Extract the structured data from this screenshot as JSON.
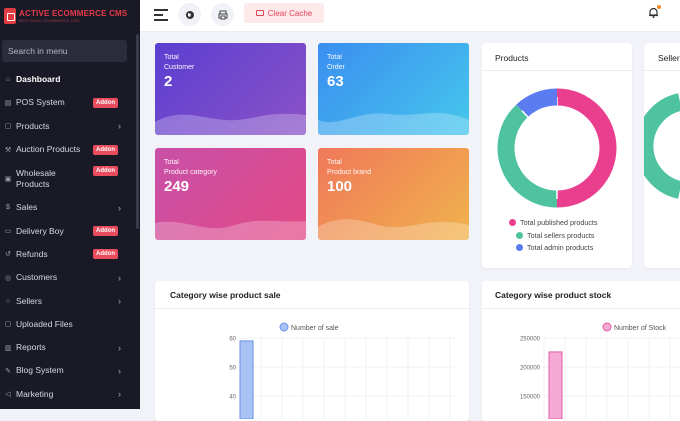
{
  "brand": {
    "title": "ACTIVE ECOMMERCE CMS",
    "subtitle": "BEST MULTI ECOMMERCE CMS"
  },
  "search": {
    "placeholder": "Search in menu"
  },
  "sidebar": {
    "items": [
      {
        "label": "Dashboard",
        "icon": "home-icon",
        "active": true
      },
      {
        "label": "POS System",
        "icon": "pos-icon",
        "addon": "Addon"
      },
      {
        "label": "Products",
        "icon": "bag-icon",
        "chevron": true
      },
      {
        "label": "Auction Products",
        "icon": "gavel-icon",
        "addon": "Addon"
      },
      {
        "label": "Wholesale Products",
        "icon": "wholesale-icon",
        "addon": "Addon"
      },
      {
        "label": "Sales",
        "icon": "sales-icon",
        "chevron": true
      },
      {
        "label": "Delivery Boy",
        "icon": "truck-icon",
        "addon": "Addon"
      },
      {
        "label": "Refunds",
        "icon": "refund-icon",
        "addon": "Addon"
      },
      {
        "label": "Customers",
        "icon": "users-icon",
        "chevron": true
      },
      {
        "label": "Sellers",
        "icon": "user-icon",
        "chevron": true
      },
      {
        "label": "Uploaded Files",
        "icon": "folder-icon"
      },
      {
        "label": "Reports",
        "icon": "report-icon",
        "chevron": true
      },
      {
        "label": "Blog System",
        "icon": "blog-icon",
        "chevron": true
      },
      {
        "label": "Marketing",
        "icon": "megaphone-icon",
        "chevron": true
      }
    ]
  },
  "topbar": {
    "clear_cache": "Clear Cache"
  },
  "stats": [
    {
      "label1": "Total",
      "label2": "Customer",
      "value": "2"
    },
    {
      "label1": "Total",
      "label2": "Order",
      "value": "63"
    },
    {
      "label1": "Total",
      "label2": "Product category",
      "value": "249"
    },
    {
      "label1": "Total",
      "label2": "Product brand",
      "value": "100"
    }
  ],
  "products_panel": {
    "title": "Products",
    "legend": [
      "Total published products",
      "Total sellers products",
      "Total admin products"
    ]
  },
  "sellers_panel": {
    "title": "Sellers"
  },
  "colors": {
    "pink": "#ea3e8f",
    "green": "#4fc3a0",
    "blue": "#5a7cf0",
    "sidebar": "#1a1a27",
    "accent": "#e4455a"
  },
  "chart_data": [
    {
      "type": "donut",
      "title": "Products",
      "categories": [
        "Total published products",
        "Total sellers products",
        "Total admin products"
      ],
      "values": [
        50,
        38,
        12
      ]
    },
    {
      "type": "bar",
      "title": "Category wise product sale",
      "series": [
        {
          "name": "Number of sale",
          "values": [
            59
          ]
        }
      ],
      "y_ticks": [
        "60",
        "50",
        "40"
      ]
    },
    {
      "type": "bar",
      "title": "Category wise product stock",
      "series": [
        {
          "name": "Number of Stock",
          "values": [
            226000
          ]
        }
      ],
      "y_ticks": [
        "250000",
        "200000",
        "150000"
      ]
    }
  ]
}
